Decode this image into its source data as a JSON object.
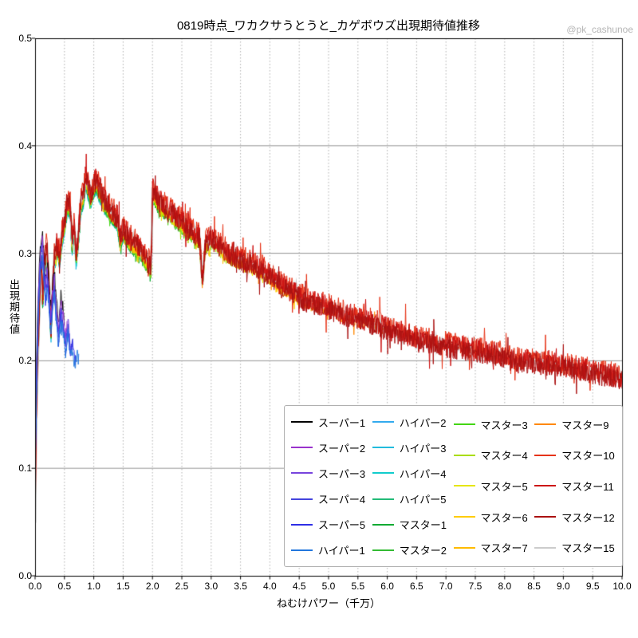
{
  "watermark": "@pk_cashunoe",
  "chart_data": {
    "type": "line",
    "title": "0819時点_ワカクサうとうと_カゲボウズ出現期待値推移",
    "xlabel": "ねむけパワー（千万）",
    "ylabel": "出現期待値",
    "xlim": [
      0,
      10
    ],
    "ylim": [
      0,
      0.5
    ],
    "xticks": [
      "0.0",
      "0.5",
      "1.0",
      "1.5",
      "2.0",
      "2.5",
      "3.0",
      "3.5",
      "4.0",
      "4.5",
      "5.0",
      "5.5",
      "6.0",
      "6.5",
      "7.0",
      "7.5",
      "8.0",
      "8.5",
      "9.0",
      "9.5",
      "10.0"
    ],
    "yticks": [
      "0.0",
      "0.1",
      "0.2",
      "0.3",
      "0.4",
      "0.5"
    ],
    "grid": {
      "horizontal": "solid",
      "vertical": "dotted"
    },
    "legend": {
      "position": "lower-right-inside",
      "columns_layout": [
        6,
        6,
        5,
        5
      ]
    },
    "base_curves": {
      "main": [
        [
          0,
          0.05
        ],
        [
          0.02,
          0.15
        ],
        [
          0.05,
          0.21
        ],
        [
          0.08,
          0.26
        ],
        [
          0.1,
          0.3
        ],
        [
          0.13,
          0.26
        ],
        [
          0.16,
          0.29
        ],
        [
          0.2,
          0.31
        ],
        [
          0.24,
          0.27
        ],
        [
          0.27,
          0.23
        ],
        [
          0.3,
          0.27
        ],
        [
          0.33,
          0.3
        ],
        [
          0.38,
          0.31
        ],
        [
          0.42,
          0.3
        ],
        [
          0.46,
          0.32
        ],
        [
          0.5,
          0.33
        ],
        [
          0.55,
          0.35
        ],
        [
          0.6,
          0.345
        ],
        [
          0.63,
          0.31
        ],
        [
          0.66,
          0.33
        ],
        [
          0.7,
          0.3
        ],
        [
          0.74,
          0.32
        ],
        [
          0.78,
          0.35
        ],
        [
          0.82,
          0.355
        ],
        [
          0.86,
          0.375
        ],
        [
          0.9,
          0.365
        ],
        [
          0.95,
          0.355
        ],
        [
          1,
          0.365
        ],
        [
          1.05,
          0.37
        ],
        [
          1.1,
          0.36
        ],
        [
          1.15,
          0.355
        ],
        [
          1.2,
          0.35
        ],
        [
          1.3,
          0.34
        ],
        [
          1.4,
          0.335
        ],
        [
          1.45,
          0.315
        ],
        [
          1.5,
          0.325
        ],
        [
          1.6,
          0.315
        ],
        [
          1.7,
          0.31
        ],
        [
          1.8,
          0.305
        ],
        [
          1.9,
          0.295
        ],
        [
          1.98,
          0.288
        ],
        [
          2,
          0.36
        ],
        [
          2.05,
          0.355
        ],
        [
          2.1,
          0.35
        ],
        [
          2.2,
          0.345
        ],
        [
          2.3,
          0.34
        ],
        [
          2.4,
          0.335
        ],
        [
          2.5,
          0.33
        ],
        [
          2.6,
          0.325
        ],
        [
          2.7,
          0.32
        ],
        [
          2.8,
          0.315
        ],
        [
          2.85,
          0.275
        ],
        [
          2.9,
          0.31
        ],
        [
          3,
          0.315
        ],
        [
          3.1,
          0.31
        ],
        [
          3.2,
          0.305
        ],
        [
          3.3,
          0.3
        ],
        [
          3.5,
          0.295
        ],
        [
          3.7,
          0.29
        ],
        [
          3.9,
          0.285
        ],
        [
          4,
          0.28
        ],
        [
          4.2,
          0.27
        ],
        [
          4.4,
          0.265
        ],
        [
          4.5,
          0.26
        ],
        [
          4.7,
          0.255
        ],
        [
          5,
          0.25
        ],
        [
          5.2,
          0.245
        ],
        [
          5.5,
          0.24
        ],
        [
          5.8,
          0.235
        ],
        [
          6,
          0.23
        ],
        [
          6.3,
          0.225
        ],
        [
          6.5,
          0.22
        ],
        [
          7,
          0.215
        ],
        [
          7.5,
          0.21
        ],
        [
          8,
          0.205
        ],
        [
          8.2,
          0.2
        ],
        [
          8.5,
          0.2
        ],
        [
          9,
          0.195
        ],
        [
          9.5,
          0.19
        ],
        [
          10,
          0.185
        ]
      ],
      "super": [
        [
          0,
          0.1
        ],
        [
          0.03,
          0.2
        ],
        [
          0.06,
          0.26
        ],
        [
          0.09,
          0.295
        ],
        [
          0.12,
          0.31
        ],
        [
          0.15,
          0.285
        ],
        [
          0.18,
          0.26
        ],
        [
          0.21,
          0.28
        ],
        [
          0.24,
          0.255
        ],
        [
          0.27,
          0.235
        ],
        [
          0.3,
          0.26
        ],
        [
          0.33,
          0.27
        ],
        [
          0.36,
          0.245
        ],
        [
          0.4,
          0.225
        ],
        [
          0.44,
          0.25
        ],
        [
          0.48,
          0.235
        ],
        [
          0.52,
          0.215
        ],
        [
          0.56,
          0.235
        ],
        [
          0.6,
          0.215
        ],
        [
          0.64,
          0.22
        ],
        [
          0.68,
          0.205
        ],
        [
          0.72,
          0.215
        ],
        [
          0.75,
          0.21
        ]
      ]
    },
    "series": [
      {
        "name": "スーパー1",
        "color": "#000000",
        "curve": "super",
        "x_end": 0.5,
        "offset": 0.012,
        "noise": 0.006,
        "width": 0.9,
        "z": 5
      },
      {
        "name": "スーパー2",
        "color": "#9932cc",
        "curve": "super",
        "x_end": 0.55,
        "offset": 0.006,
        "noise": 0.006,
        "width": 0.9,
        "z": 5
      },
      {
        "name": "スーパー3",
        "color": "#7744dd",
        "curve": "super",
        "x_end": 0.6,
        "offset": 0.002,
        "noise": 0.006,
        "width": 0.9,
        "z": 5
      },
      {
        "name": "スーパー4",
        "color": "#4444dd",
        "curve": "super",
        "x_end": 0.65,
        "offset": -0.003,
        "noise": 0.006,
        "width": 0.9,
        "z": 5
      },
      {
        "name": "スーパー5",
        "color": "#2e2ee6",
        "curve": "super",
        "x_end": 0.7,
        "offset": -0.007,
        "noise": 0.006,
        "width": 0.9,
        "z": 5
      },
      {
        "name": "ハイパー1",
        "color": "#2277dd",
        "curve": "super",
        "x_end": 0.75,
        "offset": -0.01,
        "noise": 0.006,
        "width": 0.9,
        "z": 5
      },
      {
        "name": "ハイパー2",
        "color": "#33aaee",
        "curve": "main",
        "x_end": 1.0,
        "offset": -0.012,
        "noise": 0.004,
        "width": 0.9,
        "z": 1
      },
      {
        "name": "ハイパー3",
        "color": "#22bbdd",
        "curve": "main",
        "x_end": 1.2,
        "offset": -0.012,
        "noise": 0.004,
        "width": 0.9,
        "z": 1
      },
      {
        "name": "ハイパー4",
        "color": "#11cccc",
        "curve": "main",
        "x_end": 1.5,
        "offset": -0.011,
        "noise": 0.004,
        "width": 0.9,
        "z": 1
      },
      {
        "name": "ハイパー5",
        "color": "#22bb77",
        "curve": "main",
        "x_end": 1.8,
        "offset": -0.01,
        "noise": 0.004,
        "width": 0.9,
        "z": 1
      },
      {
        "name": "マスター1",
        "color": "#11aa33",
        "curve": "main",
        "x_end": 2.2,
        "offset": -0.01,
        "noise": 0.004,
        "width": 0.9,
        "z": 2
      },
      {
        "name": "マスター2",
        "color": "#33bb33",
        "curve": "main",
        "x_end": 2.6,
        "offset": -0.009,
        "noise": 0.0045,
        "width": 0.9,
        "z": 2
      },
      {
        "name": "マスター3",
        "color": "#44d511",
        "curve": "main",
        "x_end": 3.0,
        "offset": -0.008,
        "noise": 0.0045,
        "width": 0.9,
        "z": 2
      },
      {
        "name": "マスター4",
        "color": "#aadd00",
        "curve": "main",
        "x_end": 3.5,
        "offset": -0.007,
        "noise": 0.005,
        "width": 0.9,
        "z": 2
      },
      {
        "name": "マスター5",
        "color": "#e6e600",
        "curve": "main",
        "x_end": 4.0,
        "offset": -0.006,
        "noise": 0.005,
        "width": 0.9,
        "z": 2
      },
      {
        "name": "マスター6",
        "color": "#ffcc00",
        "curve": "main",
        "x_end": 4.5,
        "offset": -0.005,
        "noise": 0.005,
        "width": 0.9,
        "z": 2
      },
      {
        "name": "マスター7",
        "color": "#ffbb00",
        "curve": "main",
        "x_end": 5.0,
        "offset": -0.004,
        "noise": 0.005,
        "width": 0.9,
        "z": 2
      },
      {
        "name": "マスター9",
        "color": "#ff8800",
        "curve": "main",
        "x_end": 6.0,
        "offset": -0.003,
        "noise": 0.006,
        "width": 0.9,
        "z": 2
      },
      {
        "name": "マスター10",
        "color": "#e63317",
        "curve": "main",
        "x_end": 10.0,
        "offset": 0.002,
        "noise": 0.011,
        "width": 1.0,
        "z": 4
      },
      {
        "name": "マスター11",
        "color": "#cc1111",
        "curve": "main",
        "x_end": 10.0,
        "offset": 0.0,
        "noise": 0.011,
        "width": 1.0,
        "z": 4
      },
      {
        "name": "マスター12",
        "color": "#aa1111",
        "curve": "main",
        "x_end": 10.0,
        "offset": -0.002,
        "noise": 0.01,
        "width": 1.0,
        "z": 4
      },
      {
        "name": "マスター15",
        "color": "#cccccc",
        "curve": "main",
        "x_end": 10.0,
        "offset": 0.0,
        "noise": 0.0025,
        "width": 3.0,
        "z": 3
      }
    ]
  }
}
